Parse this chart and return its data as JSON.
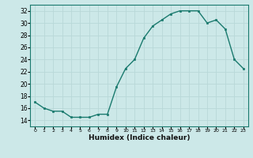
{
  "x": [
    0,
    1,
    2,
    3,
    4,
    5,
    6,
    7,
    8,
    9,
    10,
    11,
    12,
    13,
    14,
    15,
    16,
    17,
    18,
    19,
    20,
    21,
    22,
    23
  ],
  "y": [
    17.0,
    16.0,
    15.5,
    15.5,
    14.5,
    14.5,
    14.5,
    15.0,
    15.0,
    19.5,
    22.5,
    24.0,
    27.5,
    29.5,
    30.5,
    31.5,
    32.0,
    32.0,
    32.0,
    30.0,
    30.5,
    29.0,
    24.0,
    22.5
  ],
  "xlabel": "Humidex (Indice chaleur)",
  "ylabel": "",
  "ylim": [
    13,
    33
  ],
  "xlim": [
    -0.5,
    23.5
  ],
  "yticks": [
    14,
    16,
    18,
    20,
    22,
    24,
    26,
    28,
    30,
    32
  ],
  "xticks": [
    0,
    1,
    2,
    3,
    4,
    5,
    6,
    7,
    8,
    9,
    10,
    11,
    12,
    13,
    14,
    15,
    16,
    17,
    18,
    19,
    20,
    21,
    22,
    23
  ],
  "line_color": "#1a7a6e",
  "marker_color": "#1a7a6e",
  "bg_color": "#cce8e8",
  "grid_color": "#b8d8d8",
  "title": ""
}
